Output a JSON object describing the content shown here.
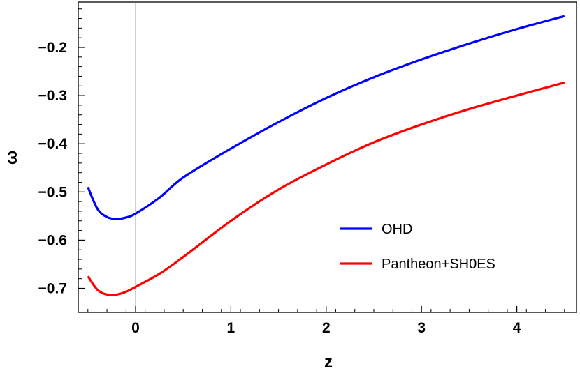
{
  "chart_data": {
    "type": "line",
    "title": "",
    "xlabel": "z",
    "ylabel": "ω",
    "xlim": [
      -0.5,
      4.5
    ],
    "ylim": [
      -0.745,
      -0.125
    ],
    "x_ticks": [
      0,
      1,
      2,
      3,
      4
    ],
    "x_tick_labels": [
      "0",
      "1",
      "2",
      "3",
      "4"
    ],
    "y_ticks": [
      -0.7,
      -0.6,
      -0.5,
      -0.4,
      -0.3,
      -0.2
    ],
    "y_tick_labels": [
      "-0.7",
      "-0.6",
      "-0.5",
      "-0.4",
      "-0.3",
      "-0.2"
    ],
    "grid": false,
    "legend_position": "center-right",
    "series": [
      {
        "name": "OHD",
        "color": "#0000ff",
        "x": [
          -0.5,
          -0.4,
          -0.3,
          -0.2,
          -0.1,
          0,
          0.25,
          0.5,
          1,
          1.5,
          2,
          2.5,
          3,
          3.5,
          4,
          4.5
        ],
        "y": [
          -0.49,
          -0.535,
          -0.552,
          -0.556,
          -0.553,
          -0.545,
          -0.512,
          -0.47,
          -0.41,
          -0.355,
          -0.305,
          -0.262,
          -0.225,
          -0.192,
          -0.162,
          -0.135
        ]
      },
      {
        "name": "Pantheon+SH0ES",
        "color": "#ff0000",
        "x": [
          -0.5,
          -0.4,
          -0.3,
          -0.2,
          -0.1,
          0,
          0.25,
          0.5,
          1,
          1.5,
          2,
          2.5,
          3,
          3.5,
          4,
          4.5
        ],
        "y": [
          -0.675,
          -0.703,
          -0.713,
          -0.713,
          -0.707,
          -0.697,
          -0.67,
          -0.635,
          -0.56,
          -0.495,
          -0.443,
          -0.397,
          -0.36,
          -0.328,
          -0.3,
          -0.273
        ]
      }
    ]
  }
}
